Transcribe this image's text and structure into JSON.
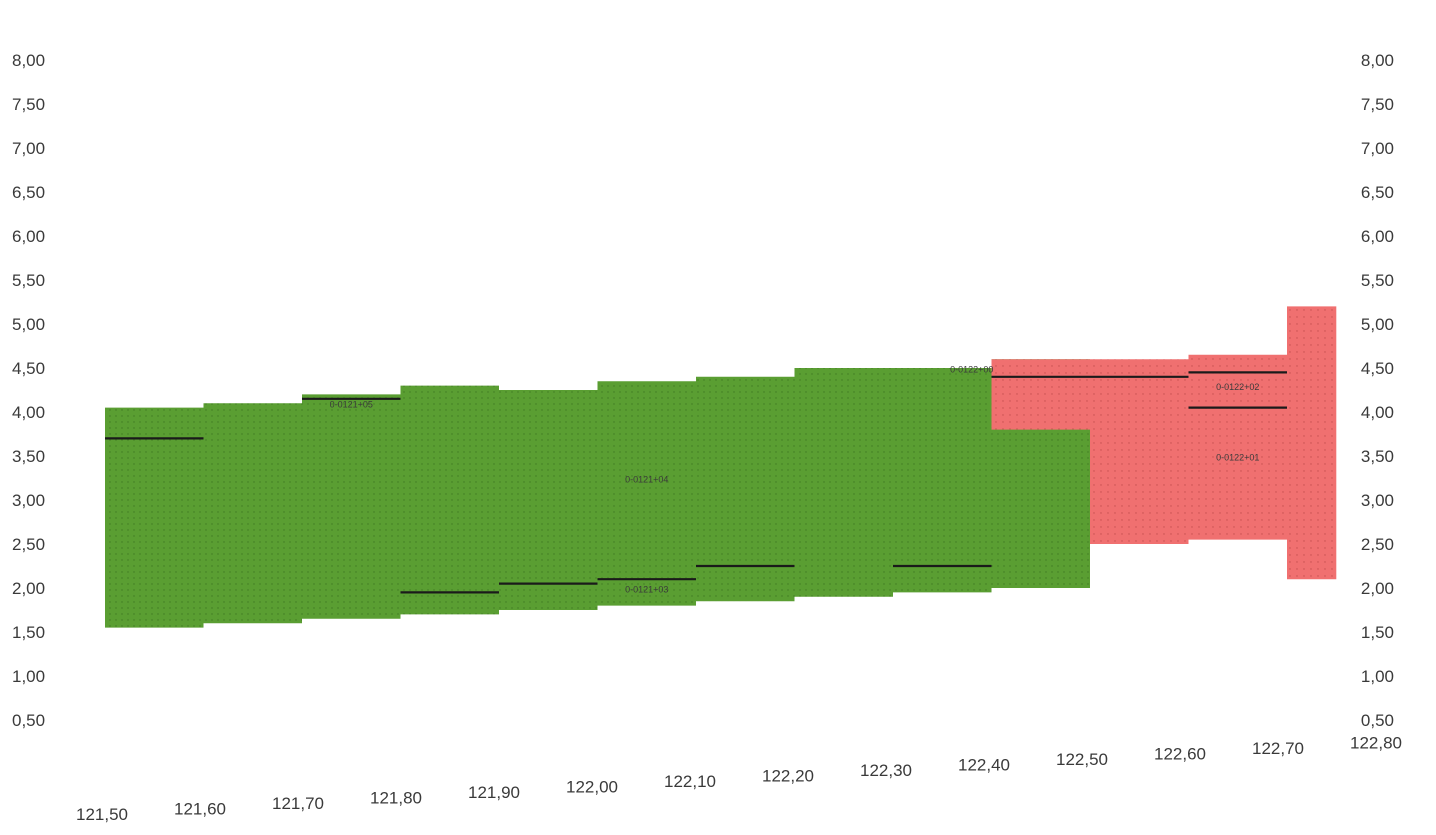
{
  "chart_data": {
    "type": "area",
    "title": "",
    "xlabel": "",
    "ylabel": "",
    "x_ticks": [
      "121,50",
      "121,60",
      "121,70",
      "121,80",
      "121,90",
      "122,00",
      "122,10",
      "122,20",
      "122,30",
      "122,40",
      "122,50",
      "122,60",
      "122,70",
      "122,80"
    ],
    "y_ticks_left": [
      "0,50",
      "1,00",
      "1,50",
      "2,00",
      "2,50",
      "3,00",
      "3,50",
      "4,00",
      "4,50",
      "5,00",
      "5,50",
      "6,00",
      "6,50",
      "7,00",
      "7,50",
      "8,00"
    ],
    "y_ticks_right": [
      "0,50",
      "1,00",
      "1,50",
      "2,00",
      "2,50",
      "3,00",
      "3,50",
      "4,00",
      "4,50",
      "5,00",
      "5,50",
      "6,00",
      "6,50",
      "7,00",
      "7,50",
      "8,00"
    ],
    "series": [
      {
        "color": "#5a9e32",
        "x": [
          121.5,
          121.6,
          121.7,
          121.8,
          121.9,
          122.0,
          122.1,
          122.2,
          122.3,
          122.4,
          122.5
        ],
        "top": [
          4.05,
          4.1,
          4.2,
          4.3,
          4.25,
          4.35,
          4.4,
          4.5,
          4.5,
          4.6,
          4.55
        ],
        "bottom": [
          1.55,
          1.6,
          1.65,
          1.7,
          1.75,
          1.8,
          1.85,
          1.9,
          1.95,
          2.0,
          2.05
        ]
      },
      {
        "color": "#f07070",
        "x": [
          122.4,
          122.5,
          122.6,
          122.7,
          122.75
        ],
        "top": [
          4.6,
          4.6,
          4.65,
          5.2,
          5.2
        ],
        "bottom": [
          3.8,
          2.5,
          2.55,
          2.1,
          1.95
        ]
      }
    ],
    "levels": [
      {
        "x0": 121.5,
        "x1": 121.6,
        "y": 3.7
      },
      {
        "x0": 121.7,
        "x1": 121.8,
        "y": 4.15
      },
      {
        "x0": 121.8,
        "x1": 121.9,
        "y": 1.95
      },
      {
        "x0": 121.9,
        "x1": 122.0,
        "y": 2.05
      },
      {
        "x0": 122.0,
        "x1": 122.1,
        "y": 2.1
      },
      {
        "x0": 122.1,
        "x1": 122.2,
        "y": 2.25
      },
      {
        "x0": 122.3,
        "x1": 122.4,
        "y": 2.25
      },
      {
        "x0": 122.4,
        "x1": 122.6,
        "y": 4.4
      },
      {
        "x0": 122.6,
        "x1": 122.7,
        "y": 4.45
      },
      {
        "x0": 122.6,
        "x1": 122.7,
        "y": 4.05
      }
    ],
    "annotations": [
      {
        "text": "0-0121+03",
        "x": 122.05,
        "y": 1.95
      },
      {
        "text": "0-0121+04",
        "x": 122.05,
        "y": 3.2
      },
      {
        "text": "0-0121+05",
        "x": 121.75,
        "y": 4.05
      },
      {
        "text": "0-0122+00",
        "x": 122.38,
        "y": 4.45
      },
      {
        "text": "0-0122+02",
        "x": 122.65,
        "y": 4.25
      },
      {
        "text": "0-0122+01",
        "x": 122.65,
        "y": 3.45
      }
    ],
    "grid": false,
    "legend": "none"
  }
}
